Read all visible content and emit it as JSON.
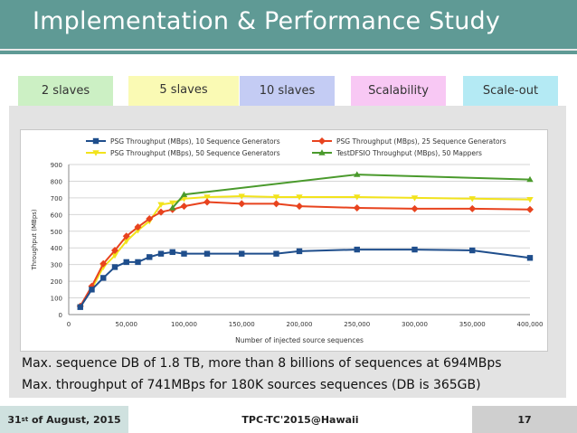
{
  "header": {
    "title": "Implementation & Performance Study"
  },
  "tabs": [
    {
      "label": "2 slaves",
      "color": "#ccf0c4"
    },
    {
      "label": "5 slaves",
      "color": "#fafab4"
    },
    {
      "label": "10 slaves",
      "color": "#c4ccf4"
    },
    {
      "label": "Scalability",
      "color": "#f8c8f4"
    },
    {
      "label": "Scale-out",
      "color": "#b4eaf4"
    }
  ],
  "captions": [
    "Max. sequence DB of 1.8 TB, more than 8 billions of sequences at 694MBps",
    "Max. throughput of 741MBps for 180K sources sequences (DB is 365GB)"
  ],
  "footer": {
    "date_prefix": "31",
    "date_sup": "st",
    "date_rest": " of August, 2015",
    "center": "TPC-TC'2015@Hawaii",
    "page": "17"
  },
  "chart_data": {
    "type": "line",
    "xlabel": "Number of injected source sequences",
    "ylabel": "Throughput (MBps)",
    "xlim": [
      0,
      400000
    ],
    "ylim": [
      0,
      900
    ],
    "xticks": [
      0,
      50000,
      100000,
      150000,
      200000,
      250000,
      300000,
      350000,
      400000
    ],
    "xtick_labels": [
      "0",
      "50,000",
      "100,000",
      "150,000",
      "200,000",
      "250,000",
      "300,000",
      "350,000",
      "400,000"
    ],
    "yticks": [
      0,
      100,
      200,
      300,
      400,
      500,
      600,
      700,
      800,
      900
    ],
    "ytick_labels": [
      "0",
      "100",
      "200",
      "300",
      "400",
      "500",
      "600",
      "700",
      "800",
      "900"
    ],
    "grid": true,
    "legend_position": "top",
    "series": [
      {
        "name": "PSG Throughput (MBps), 10 Sequence Generators",
        "color": "#1f4e8c",
        "marker": "square",
        "x": [
          10000,
          20000,
          30000,
          40000,
          50000,
          60000,
          70000,
          80000,
          90000,
          100000,
          120000,
          150000,
          180000,
          200000,
          250000,
          300000,
          350000,
          400000
        ],
        "y": [
          45,
          150,
          220,
          285,
          315,
          315,
          345,
          365,
          375,
          365,
          365,
          365,
          365,
          380,
          390,
          390,
          385,
          340
        ]
      },
      {
        "name": "PSG Throughput (MBps), 25 Sequence Generators",
        "color": "#e8431e",
        "marker": "diamond",
        "x": [
          10000,
          20000,
          30000,
          40000,
          50000,
          60000,
          70000,
          80000,
          90000,
          100000,
          120000,
          150000,
          180000,
          200000,
          250000,
          300000,
          350000,
          400000
        ],
        "y": [
          50,
          170,
          305,
          385,
          470,
          525,
          575,
          615,
          630,
          650,
          675,
          665,
          665,
          650,
          640,
          635,
          635,
          630
        ]
      },
      {
        "name": "PSG Throughput (MBps), 50 Sequence Generators",
        "color": "#f2e31c",
        "marker": "triangle-down",
        "x": [
          10000,
          20000,
          30000,
          40000,
          50000,
          60000,
          70000,
          80000,
          90000,
          100000,
          120000,
          150000,
          180000,
          200000,
          250000,
          300000,
          350000,
          400000
        ],
        "y": [
          48,
          155,
          285,
          355,
          440,
          505,
          560,
          660,
          670,
          695,
          705,
          710,
          705,
          705,
          705,
          700,
          695,
          690
        ]
      },
      {
        "name": "TestDFSIO Throughput (MBps), 50 Mappers",
        "color": "#4a9a2c",
        "marker": "triangle-up",
        "x": [
          90000,
          100000,
          250000,
          400000
        ],
        "y": [
          640,
          720,
          840,
          810
        ]
      }
    ]
  }
}
